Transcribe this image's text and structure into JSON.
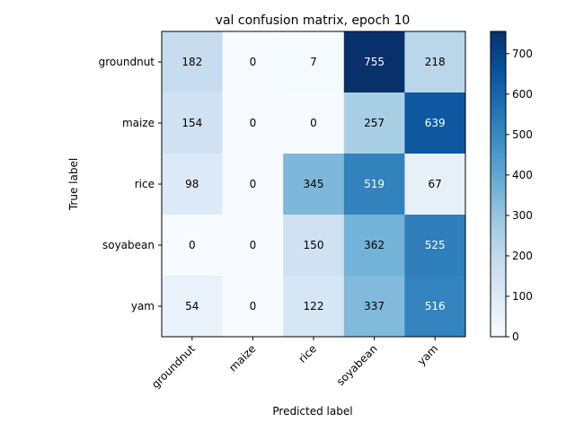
{
  "chart_data": {
    "type": "heatmap",
    "title": "val confusion matrix, epoch 10",
    "xlabel": "Predicted label",
    "ylabel": "True label",
    "x_categories": [
      "groundnut",
      "maize",
      "rice",
      "soyabean",
      "yam"
    ],
    "y_categories": [
      "groundnut",
      "maize",
      "rice",
      "soyabean",
      "yam"
    ],
    "values": [
      [
        182,
        0,
        7,
        755,
        218
      ],
      [
        154,
        0,
        0,
        257,
        639
      ],
      [
        98,
        0,
        345,
        519,
        67
      ],
      [
        0,
        0,
        150,
        362,
        525
      ],
      [
        54,
        0,
        122,
        337,
        516
      ]
    ],
    "colormap": "Blues",
    "vmin": 0,
    "vmax": 755,
    "colorbar_ticks": [
      0,
      100,
      200,
      300,
      400,
      500,
      600,
      700
    ],
    "colorbar_tick_labels": [
      "0",
      "100",
      "200",
      "300",
      "400",
      "500",
      "600",
      "700"
    ],
    "text_color_dark": "#000000",
    "text_color_light": "#ffffff",
    "grid": false
  }
}
